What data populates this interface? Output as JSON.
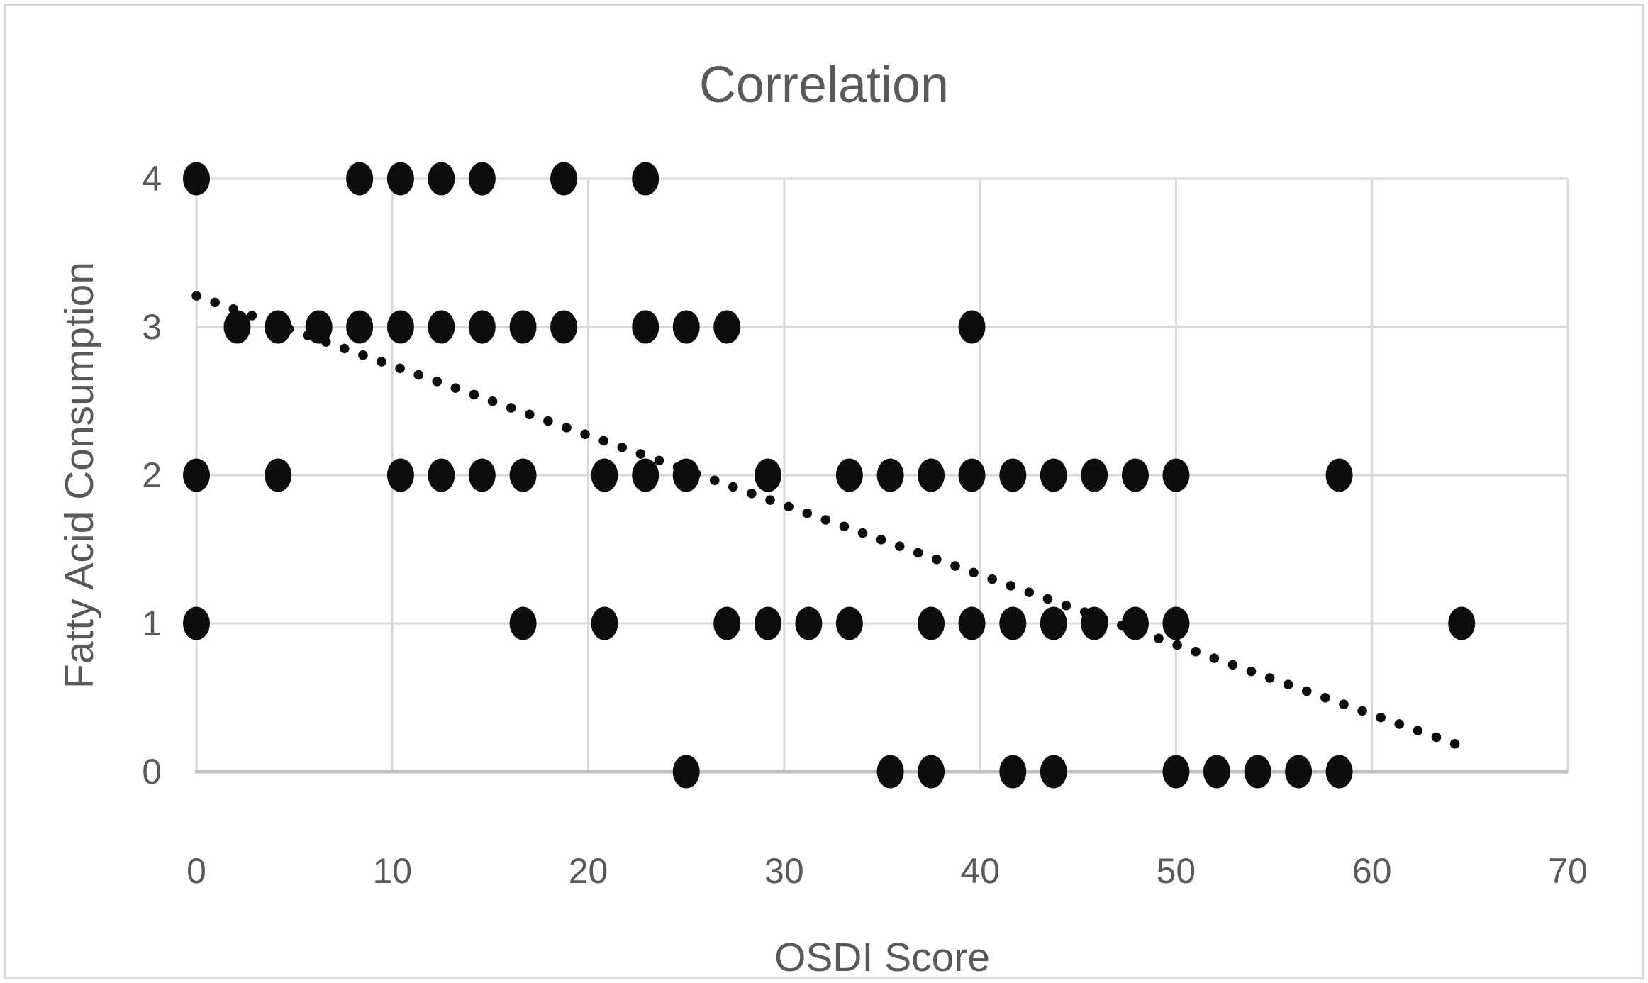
{
  "title": "Correlation",
  "colors": {
    "text": "#595959",
    "gridline": "#d9d9d9",
    "axis_line": "#bfbfbf",
    "marker": "#0d0d0d",
    "trendline": "#0d0d0d",
    "chart_border": "#d9d9d9",
    "background": "#ffffff"
  },
  "chart_data": {
    "type": "scatter",
    "title": "Correlation",
    "xlabel": "OSDI Score",
    "ylabel": "Fatty Acid Consumption",
    "xlim": [
      0,
      70
    ],
    "ylim": [
      0,
      4
    ],
    "x_ticks": [
      0,
      10,
      20,
      30,
      40,
      50,
      60,
      70
    ],
    "x_tick_labels": [
      "0",
      "10",
      "20",
      "30",
      "40",
      "50",
      "60",
      "70"
    ],
    "y_ticks": [
      0,
      1,
      2,
      3,
      4
    ],
    "y_tick_labels": [
      "0",
      "1",
      "2",
      "3",
      "4"
    ],
    "grid": true,
    "legend": "none",
    "marker_shape": "filled-circle",
    "points": [
      [
        0,
        4
      ],
      [
        8.33,
        4
      ],
      [
        10.42,
        4
      ],
      [
        12.5,
        4
      ],
      [
        14.58,
        4
      ],
      [
        18.75,
        4
      ],
      [
        22.92,
        4
      ],
      [
        2.08,
        3
      ],
      [
        4.17,
        3
      ],
      [
        6.25,
        3
      ],
      [
        8.33,
        3
      ],
      [
        10.42,
        3
      ],
      [
        12.5,
        3
      ],
      [
        14.58,
        3
      ],
      [
        16.67,
        3
      ],
      [
        18.75,
        3
      ],
      [
        22.92,
        3
      ],
      [
        25,
        3
      ],
      [
        27.08,
        3
      ],
      [
        39.58,
        3
      ],
      [
        0,
        2
      ],
      [
        4.17,
        2
      ],
      [
        10.42,
        2
      ],
      [
        12.5,
        2
      ],
      [
        14.58,
        2
      ],
      [
        16.67,
        2
      ],
      [
        20.83,
        2
      ],
      [
        22.92,
        2
      ],
      [
        25,
        2
      ],
      [
        29.17,
        2
      ],
      [
        33.33,
        2
      ],
      [
        35.42,
        2
      ],
      [
        37.5,
        2
      ],
      [
        39.58,
        2
      ],
      [
        41.67,
        2
      ],
      [
        43.75,
        2
      ],
      [
        45.83,
        2
      ],
      [
        47.92,
        2
      ],
      [
        50,
        2
      ],
      [
        58.33,
        2
      ],
      [
        0,
        1
      ],
      [
        16.67,
        1
      ],
      [
        20.83,
        1
      ],
      [
        27.08,
        1
      ],
      [
        29.17,
        1
      ],
      [
        31.25,
        1
      ],
      [
        33.33,
        1
      ],
      [
        37.5,
        1
      ],
      [
        39.58,
        1
      ],
      [
        41.67,
        1
      ],
      [
        43.75,
        1
      ],
      [
        45.83,
        1
      ],
      [
        47.92,
        1
      ],
      [
        50,
        1
      ],
      [
        64.58,
        1
      ],
      [
        25,
        0
      ],
      [
        35.42,
        0
      ],
      [
        37.5,
        0
      ],
      [
        41.67,
        0
      ],
      [
        43.75,
        0
      ],
      [
        50,
        0
      ],
      [
        52.08,
        0
      ],
      [
        54.17,
        0
      ],
      [
        56.25,
        0
      ],
      [
        58.33,
        0
      ]
    ],
    "trendline": {
      "style": "dotted",
      "x_start": 0,
      "y_start": 3.21,
      "x_end": 64.6,
      "y_end": 0.17,
      "slope": -0.047,
      "intercept": 3.21
    }
  }
}
